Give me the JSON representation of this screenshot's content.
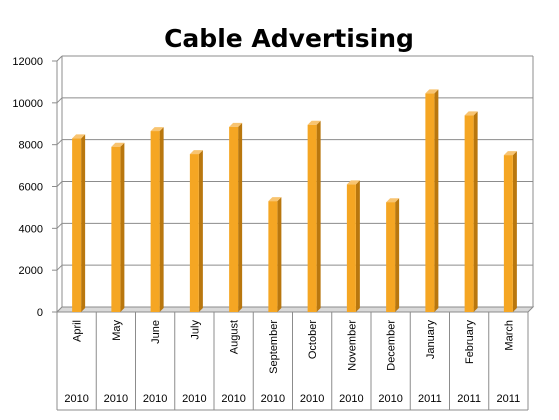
{
  "chart_data": {
    "type": "bar",
    "title": "Cable Advertising",
    "xlabel": "",
    "ylabel": "",
    "ylim": [
      0,
      12000
    ],
    "yticks": [
      0,
      2000,
      4000,
      6000,
      8000,
      10000,
      12000
    ],
    "grid": true,
    "legend": "none",
    "bar_color": "#F5A623",
    "categories": [
      "April",
      "May",
      "June",
      "July",
      "August",
      "September",
      "October",
      "November",
      "December",
      "January",
      "February",
      "March"
    ],
    "years": [
      "2010",
      "2010",
      "2010",
      "2010",
      "2010",
      "2010",
      "2010",
      "2010",
      "2010",
      "2011",
      "2011",
      "2011"
    ],
    "values": [
      8300,
      7900,
      8650,
      7550,
      8850,
      5300,
      8950,
      6100,
      5250,
      10450,
      9400,
      7500
    ]
  }
}
